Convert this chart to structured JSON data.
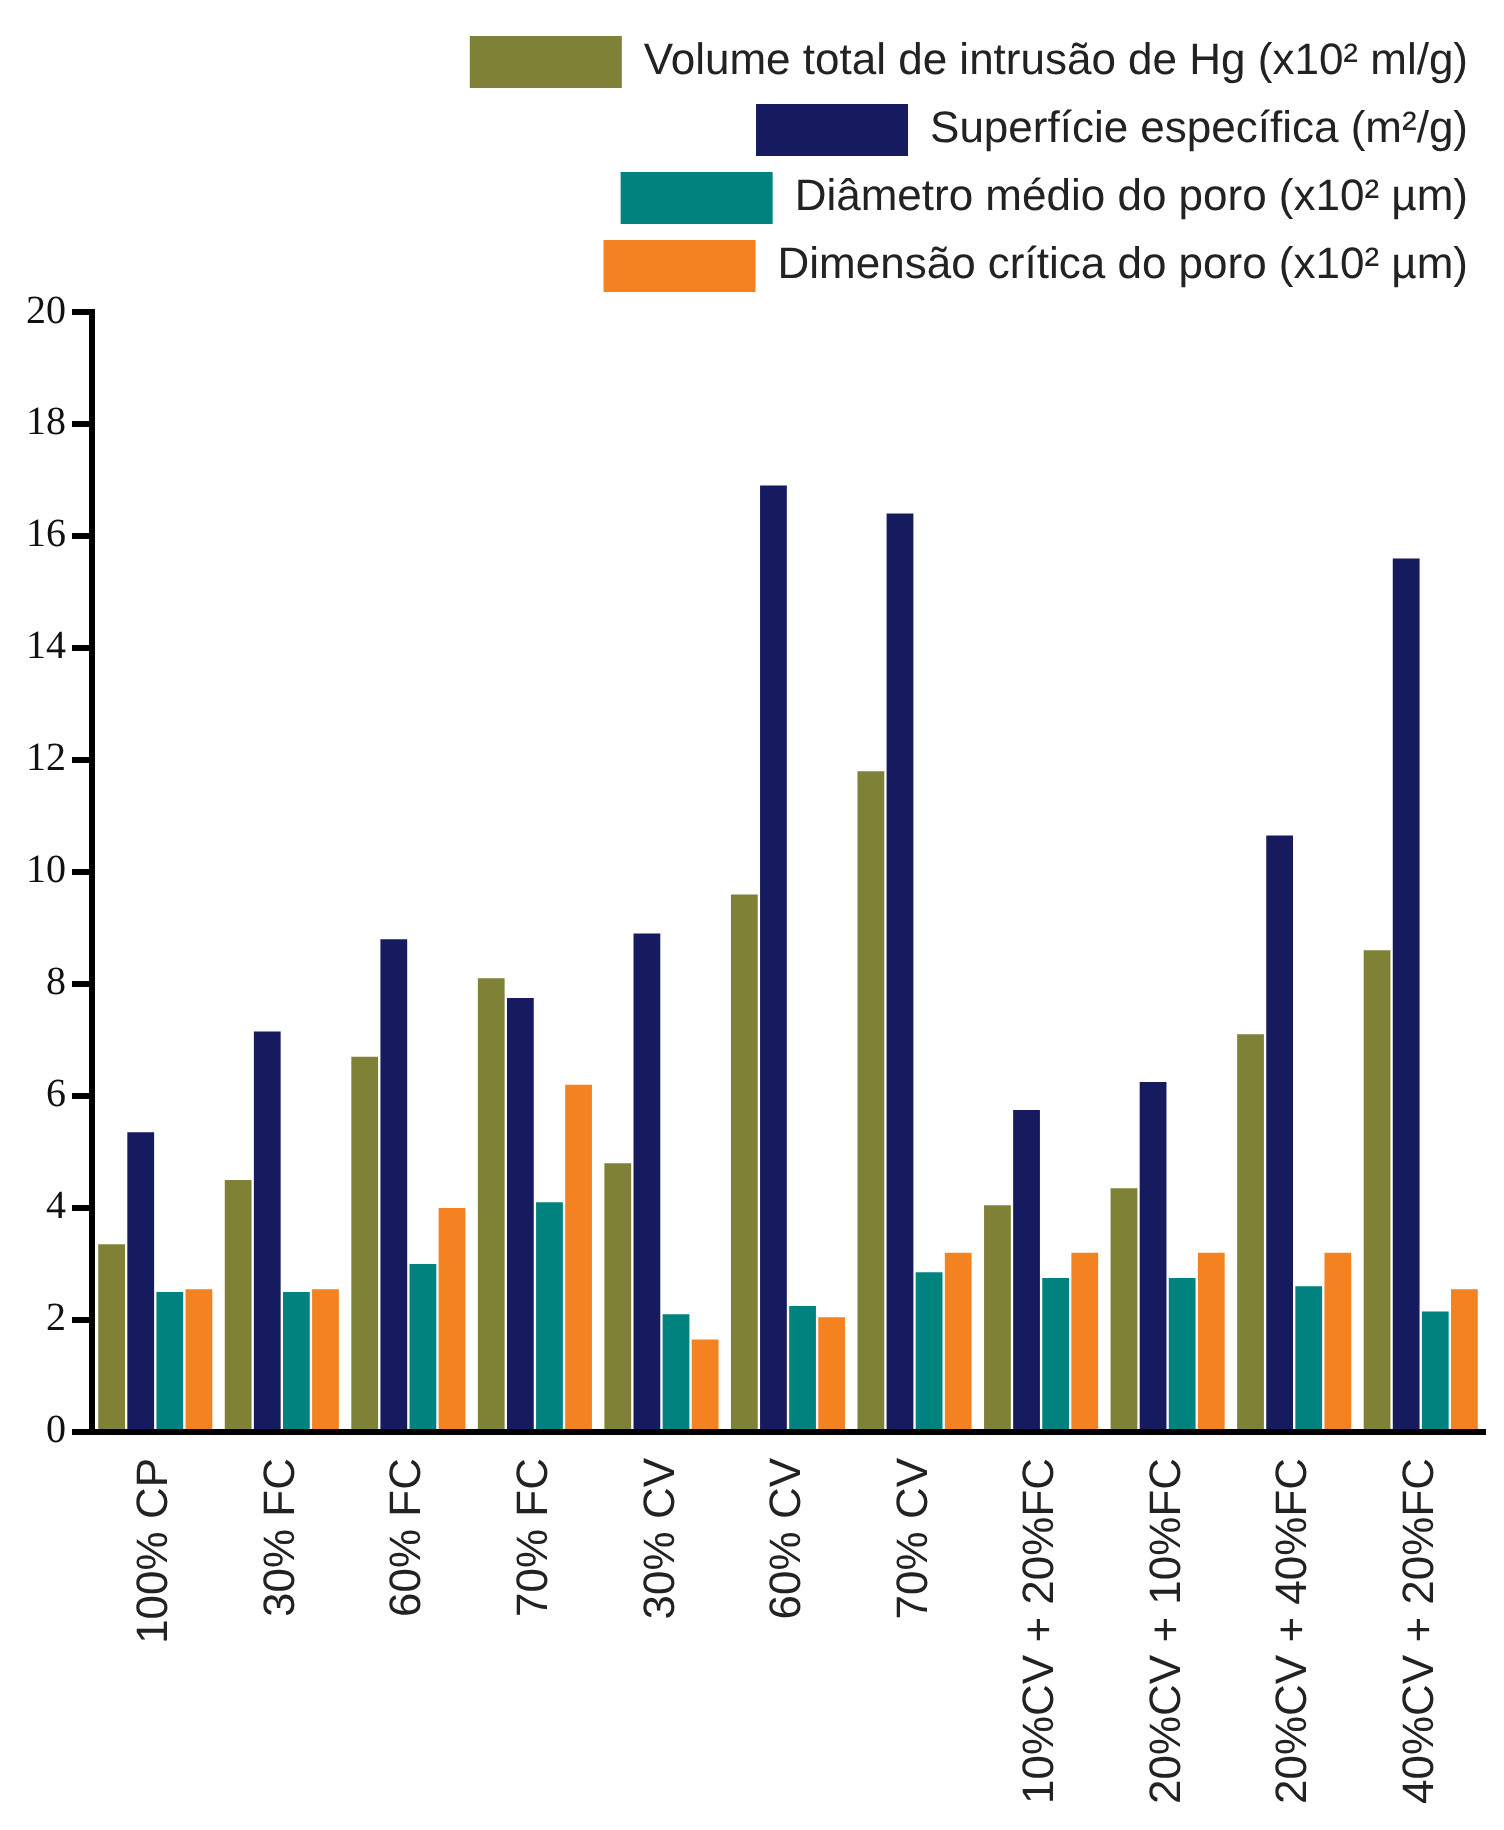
{
  "chart_data": {
    "type": "bar",
    "categories": [
      "100% CP",
      "30% FC",
      "60% FC",
      "70% FC",
      "30% CV",
      "60% CV",
      "70% CV",
      "10%CV + 20%FC",
      "20%CV + 10%FC",
      "20%CV + 40%FC",
      "40%CV + 20%FC"
    ],
    "series": [
      {
        "name": "Volume total de intrusão de Hg (x10² ml/g)",
        "color": "#7f8236",
        "values": [
          3.35,
          4.5,
          6.7,
          8.1,
          4.8,
          9.6,
          11.8,
          4.05,
          4.35,
          7.1,
          8.6
        ]
      },
      {
        "name": "Superfície específica (m²/g)",
        "color": "#161a5e",
        "values": [
          5.35,
          7.15,
          8.8,
          7.75,
          8.9,
          16.9,
          16.4,
          5.75,
          6.25,
          10.65,
          15.6
        ]
      },
      {
        "name": "Diâmetro médio do poro (x10² µm)",
        "color": "#00837f",
        "values": [
          2.5,
          2.5,
          3.0,
          4.1,
          2.1,
          2.25,
          2.85,
          2.75,
          2.75,
          2.6,
          2.15
        ]
      },
      {
        "name": "Dimensão crítica do poro (x10² µm)",
        "color": "#f58220",
        "values": [
          2.55,
          2.55,
          4.0,
          6.2,
          1.65,
          2.05,
          3.2,
          3.2,
          3.2,
          3.2,
          2.55
        ]
      }
    ],
    "ylim": [
      0,
      20
    ],
    "yticks": [
      0,
      2,
      4,
      6,
      8,
      10,
      12,
      14,
      16,
      18,
      20
    ],
    "grid": false,
    "legend": "top right"
  }
}
